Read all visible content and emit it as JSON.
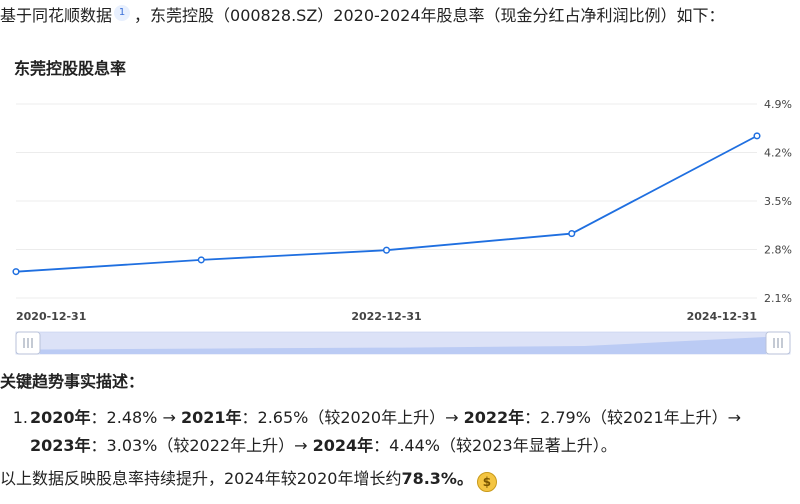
{
  "intro": {
    "prefix": "基于同花顺数据",
    "citation": "1",
    "suffix": "，东莞控股（000828.SZ）2020-2024年股息率（现金分红占净利润比例）如下："
  },
  "chart_data": {
    "type": "line",
    "title": "东莞控股股息率",
    "x": [
      "2020-12-31",
      "2021-12-31",
      "2022-12-31",
      "2023-12-31",
      "2024-12-31"
    ],
    "x_tick_labels": [
      "2020-12-31",
      "2022-12-31",
      "2024-12-31"
    ],
    "series": [
      {
        "values": [
          2.48,
          2.65,
          2.79,
          3.03,
          4.44
        ]
      }
    ],
    "y_ticks": [
      "4.9%",
      "4.2%",
      "3.5%",
      "2.8%",
      "2.1%"
    ],
    "ylim": [
      2.1,
      4.9
    ],
    "y_unit": "%",
    "grid": "horizontal",
    "line_color": "#1f6fe0",
    "zoom_slider": true
  },
  "section_heading": "关键趋势事实描述：",
  "trend_list": {
    "marker": "1.",
    "line1": [
      {
        "text": "2020年",
        "bold": true
      },
      {
        "text": "：2.48% → ",
        "bold": false
      },
      {
        "text": "2021年",
        "bold": true
      },
      {
        "text": "：2.65%（较2020年上升）→ ",
        "bold": false
      },
      {
        "text": "2022年",
        "bold": true
      },
      {
        "text": "：2.79%（较2021年上升）→",
        "bold": false
      }
    ],
    "line2": [
      {
        "text": "2023年",
        "bold": true
      },
      {
        "text": "：3.03%（较2022年上升）→ ",
        "bold": false
      },
      {
        "text": "2024年",
        "bold": true
      },
      {
        "text": "：4.44%（较2023年显著上升）。",
        "bold": false
      }
    ]
  },
  "conclusion": {
    "text": "以上数据反映股息率持续提升，2024年较2020年增长约",
    "highlight": "78.3%。",
    "icon": "money-bag-icon"
  }
}
